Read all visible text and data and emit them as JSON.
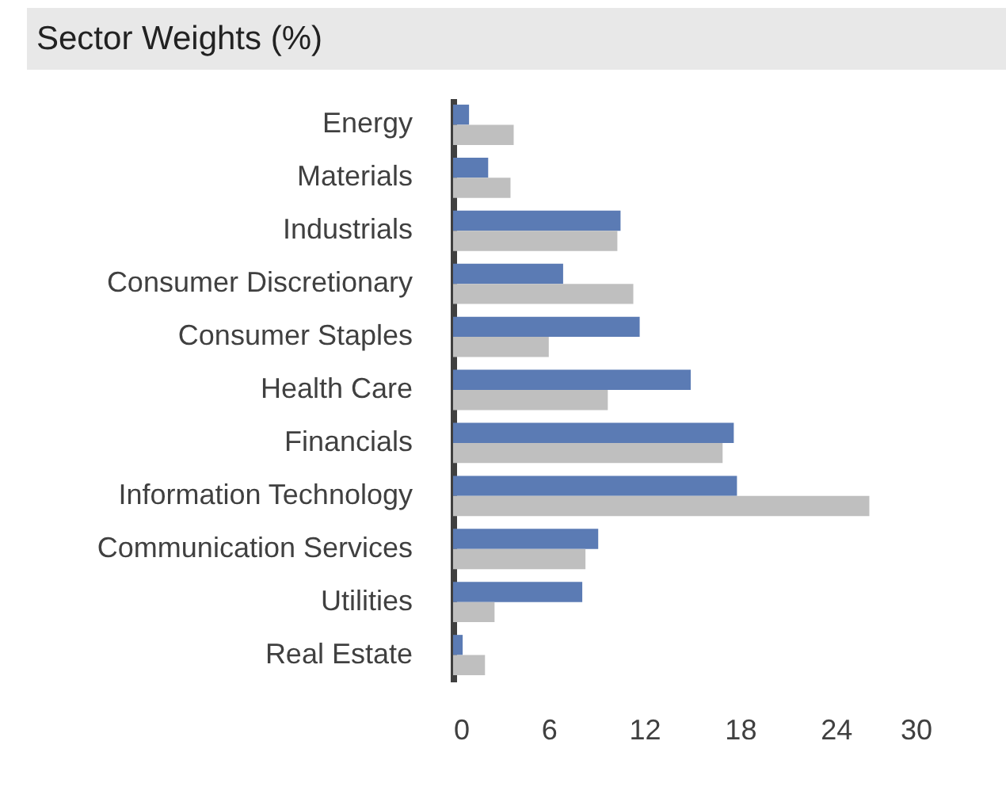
{
  "chart_data": {
    "type": "bar",
    "orientation": "horizontal",
    "title": "Sector Weights (%)",
    "categories": [
      "Energy",
      "Materials",
      "Industrials",
      "Consumer Discretionary",
      "Consumer Staples",
      "Health Care",
      "Financials",
      "Information Technology",
      "Communication Services",
      "Utilities",
      "Real Estate"
    ],
    "series": [
      {
        "color": "#5b7bb4",
        "values": [
          1.0,
          2.2,
          10.5,
          6.9,
          11.7,
          14.9,
          17.6,
          17.8,
          9.1,
          8.1,
          0.6
        ]
      },
      {
        "color": "#bfbfbf",
        "values": [
          3.8,
          3.6,
          10.3,
          11.3,
          6.0,
          9.7,
          16.9,
          26.1,
          8.3,
          2.6,
          2.0
        ]
      }
    ],
    "xlim": [
      0,
      30
    ],
    "xticks": [
      0,
      6,
      12,
      18,
      24,
      30
    ],
    "grid": false
  }
}
